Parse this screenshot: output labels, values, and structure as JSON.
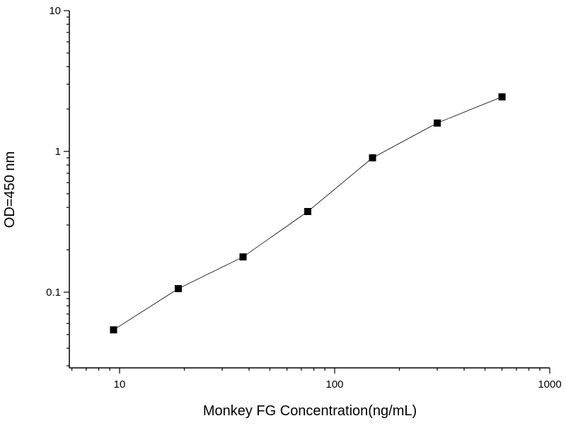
{
  "chart_data": {
    "type": "line",
    "title": "",
    "xlabel": "Monkey FG Concentration(ng/mL)",
    "ylabel": "OD=450 nm",
    "x_scale": "log",
    "y_scale": "log",
    "xlim": [
      5.84,
      1000
    ],
    "ylim": [
      0.029,
      10
    ],
    "x_ticks": [
      10,
      100,
      1000
    ],
    "x_tick_labels": [
      "10",
      "100",
      "1000"
    ],
    "y_ticks": [
      0.1,
      1,
      10
    ],
    "y_tick_labels": [
      "0.1",
      "1",
      "10"
    ],
    "grid": false,
    "marker": "square",
    "colors": {
      "line": "#000000",
      "marker": "#000000"
    },
    "series": [
      {
        "x": [
          9.375,
          18.75,
          37.5,
          75,
          150,
          300,
          600
        ],
        "y": [
          0.054,
          0.106,
          0.178,
          0.374,
          0.9,
          1.59,
          2.44
        ]
      }
    ]
  }
}
